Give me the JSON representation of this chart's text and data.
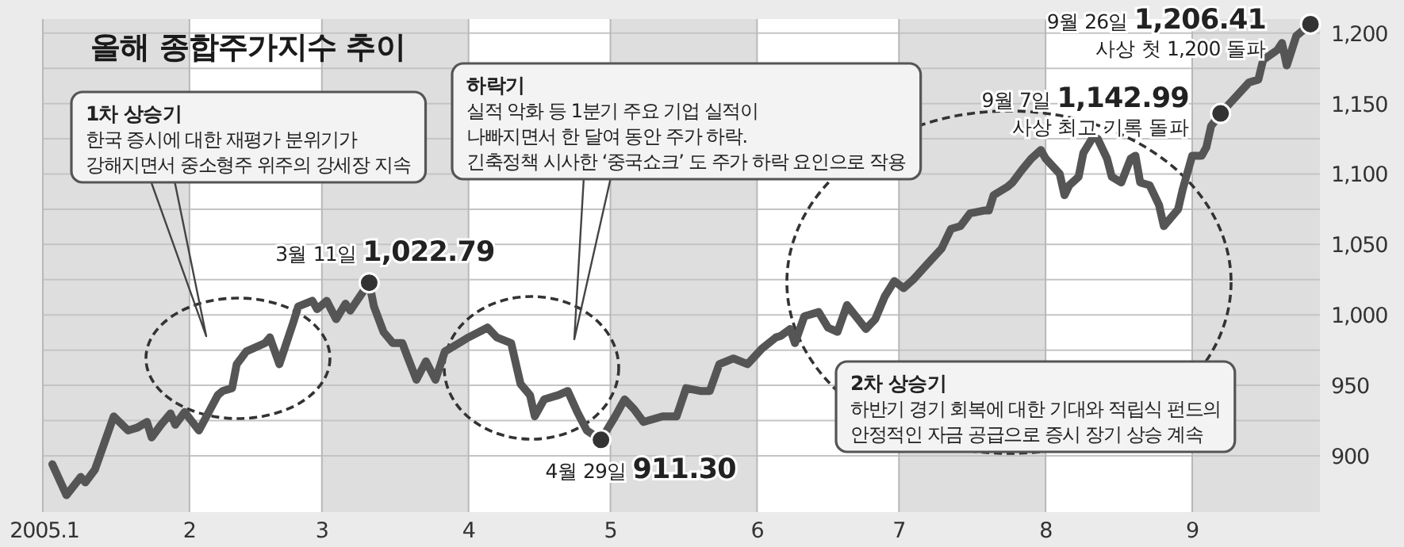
{
  "chart_data": {
    "type": "line",
    "title": "올해 종합주가지수 추이",
    "xlim": [
      "2005-01-01",
      "2005-09-28"
    ],
    "xticks": [
      {
        "value": "2005-01-01",
        "label": "2005.1"
      },
      {
        "value": "2005-02-01",
        "label": "2"
      },
      {
        "value": "2005-03-01",
        "label": "3"
      },
      {
        "value": "2005-04-01",
        "label": "4"
      },
      {
        "value": "2005-05-01",
        "label": "5"
      },
      {
        "value": "2005-06-01",
        "label": "6"
      },
      {
        "value": "2005-07-01",
        "label": "7"
      },
      {
        "value": "2005-08-01",
        "label": "8"
      },
      {
        "value": "2005-09-01",
        "label": "9"
      }
    ],
    "ylim": [
      860,
      1210
    ],
    "yticks": [
      900,
      950,
      {
        "value": 1000,
        "label": "1,000"
      },
      {
        "value": 1050,
        "label": "1,050"
      },
      {
        "value": 1100,
        "label": "1,100"
      },
      {
        "value": 1150,
        "label": "1,150"
      },
      {
        "value": 1200,
        "label": "1,200"
      }
    ],
    "grid": true,
    "series": [
      {
        "color": "#555555",
        "x": [
          "2005-01-03",
          "2005-01-06",
          "2005-01-09",
          "2005-01-10",
          "2005-01-12",
          "2005-01-16",
          "2005-01-19",
          "2005-01-21",
          "2005-01-23",
          "2005-01-24",
          "2005-01-26",
          "2005-01-28",
          "2005-01-29",
          "2005-01-31",
          "2005-02-03",
          "2005-02-07",
          "2005-02-08",
          "2005-02-10",
          "2005-02-11",
          "2005-02-13",
          "2005-02-17",
          "2005-02-18",
          "2005-02-20",
          "2005-02-23",
          "2005-02-24",
          "2005-02-27",
          "2005-02-28",
          "2005-03-02",
          "2005-03-04",
          "2005-03-06",
          "2005-03-07",
          "2005-03-11",
          "2005-03-12",
          "2005-03-14",
          "2005-03-16",
          "2005-03-18",
          "2005-03-19",
          "2005-03-21",
          "2005-03-23",
          "2005-03-25",
          "2005-03-27",
          "2005-03-30",
          "2005-04-01",
          "2005-04-05",
          "2005-04-07",
          "2005-04-10",
          "2005-04-12",
          "2005-04-14",
          "2005-04-15",
          "2005-04-17",
          "2005-04-20",
          "2005-04-22",
          "2005-04-24",
          "2005-04-26",
          "2005-04-29",
          "2005-05-02",
          "2005-05-04",
          "2005-05-06",
          "2005-05-08",
          "2005-05-12",
          "2005-05-15",
          "2005-05-17",
          "2005-05-20",
          "2005-05-22",
          "2005-05-24",
          "2005-05-27",
          "2005-05-30",
          "2005-06-02",
          "2005-06-05",
          "2005-06-06",
          "2005-06-08",
          "2005-06-09",
          "2005-06-11",
          "2005-06-14",
          "2005-06-16",
          "2005-06-18",
          "2005-06-20",
          "2005-06-24",
          "2005-06-26",
          "2005-06-28",
          "2005-06-30",
          "2005-07-02",
          "2005-07-04",
          "2005-07-07",
          "2005-07-10",
          "2005-07-12",
          "2005-07-14",
          "2005-07-16",
          "2005-07-19",
          "2005-07-20",
          "2005-07-21",
          "2005-07-24",
          "2005-07-25",
          "2005-07-27",
          "2005-07-29",
          "2005-07-31",
          "2005-08-01",
          "2005-08-04",
          "2005-08-05",
          "2005-08-06",
          "2005-08-08",
          "2005-08-09",
          "2005-08-11",
          "2005-08-12",
          "2005-08-14",
          "2005-08-15",
          "2005-08-17",
          "2005-08-19",
          "2005-08-20",
          "2005-08-21",
          "2005-08-23",
          "2005-08-25",
          "2005-08-26",
          "2005-08-29",
          "2005-08-30",
          "2005-09-01",
          "2005-09-03",
          "2005-09-04",
          "2005-09-05",
          "2005-09-07",
          "2005-09-10",
          "2005-09-13",
          "2005-09-15",
          "2005-09-16",
          "2005-09-19",
          "2005-09-20",
          "2005-09-21",
          "2005-09-23",
          "2005-09-26"
        ],
        "values": [
          894,
          872,
          885,
          881,
          890,
          928,
          918,
          920,
          924,
          913,
          922,
          930,
          922,
          931,
          918,
          943,
          946,
          948,
          965,
          974,
          980,
          984,
          965,
          995,
          1006,
          1010,
          1004,
          1010,
          997,
          1008,
          1003,
          1022.79,
          1006,
          988,
          980,
          980,
          971,
          954,
          967,
          954,
          974,
          980,
          984,
          991,
          984,
          980,
          951,
          943,
          928,
          940,
          943,
          946,
          931,
          918,
          911.3,
          928,
          940,
          933,
          924,
          928,
          928,
          948,
          946,
          946,
          965,
          969,
          965,
          976,
          984,
          985,
          990,
          980,
          999,
          1002,
          991,
          988,
          1007,
          990,
          997,
          1013,
          1024,
          1019,
          1025,
          1036,
          1047,
          1061,
          1063,
          1072,
          1074,
          1074,
          1085,
          1091,
          1094,
          1103,
          1111,
          1117,
          1111,
          1100,
          1085,
          1092,
          1098,
          1115,
          1126,
          1125,
          1111,
          1098,
          1094,
          1111,
          1113,
          1094,
          1092,
          1078,
          1063,
          1075,
          1089,
          1113,
          1113,
          1119,
          1134,
          1142.99,
          1154,
          1165,
          1167,
          1181,
          1188,
          1193,
          1177,
          1198,
          1206.41
        ]
      }
    ],
    "annotations": [
      {
        "text": "3월 11일 **1,022.79**",
        "x": "2005-03-11",
        "y": 1022.79
      },
      {
        "text": "4월 29일 **911.30**",
        "x": "2005-04-29",
        "y": 911.3
      },
      {
        "text": "9월 7일 **1,142.99**\n사상 최고 기록 돌파",
        "x": "2005-09-07",
        "y": 1142.99
      },
      {
        "text": "9월 26일 **1,206.41**\n사상 첫 1,200 돌파",
        "x": "2005-09-26",
        "y": 1206.41
      },
      "**1차 상승기**\n한국 증시에 대한 재평가 분위기가\n강해지면서 중소형주 위주의 강세장 지속",
      "**하락기**\n실적 악화 등 1분기 주요 기업 실적이\n나빠지면서 한 달여 동안 주가 하락.\n긴축정책 시사한 ‘중국쇼크’ 도 주가 하락 요인으로 작용",
      "**2차 상승기**\n하반기 경기 회복에 대한 기대와 적립식 펀드의\n안정적인 자금 공급으로 증시 장기 상승 계속"
    ]
  }
}
